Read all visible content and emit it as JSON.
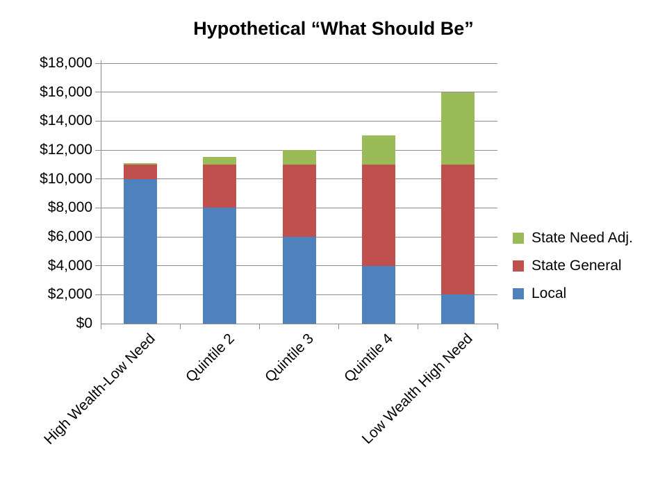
{
  "title": "Hypothetical “What Should Be”",
  "chart_data": {
    "type": "bar",
    "stacked": true,
    "title": "Hypothetical “What Should Be”",
    "categories": [
      "High Wealth-Low Need",
      "Quintile 2",
      "Quintile 3",
      "Quintile 4",
      "Low Wealth High Need"
    ],
    "series": [
      {
        "name": "Local",
        "color": "#4F81BD",
        "values": [
          10000,
          8000,
          6000,
          4000,
          2000
        ]
      },
      {
        "name": "State General",
        "color": "#C0504D",
        "values": [
          1000,
          3000,
          5000,
          7000,
          9000
        ]
      },
      {
        "name": "State Need Adj.",
        "color": "#9BBB59",
        "values": [
          100,
          500,
          1000,
          2000,
          5000
        ]
      }
    ],
    "totals": [
      11100,
      11500,
      12000,
      13000,
      16000
    ],
    "ylim": [
      0,
      18000
    ],
    "ytick_step": 2000,
    "ytick_labels": [
      "$0",
      "$2,000",
      "$4,000",
      "$6,000",
      "$8,000",
      "$10,000",
      "$12,000",
      "$14,000",
      "$16,000",
      "$18,000"
    ],
    "xlabel": "",
    "ylabel": "",
    "grid": true,
    "legend_position": "right"
  },
  "legend": {
    "items": [
      {
        "label": "State Need Adj.",
        "color": "#9BBB59"
      },
      {
        "label": "State General",
        "color": "#C0504D"
      },
      {
        "label": "Local",
        "color": "#4F81BD"
      }
    ]
  },
  "colors": {
    "background": "#FFFFFF",
    "axis": "#8C8C8C",
    "gridline": "#8C8C8C",
    "text": "#000000"
  }
}
